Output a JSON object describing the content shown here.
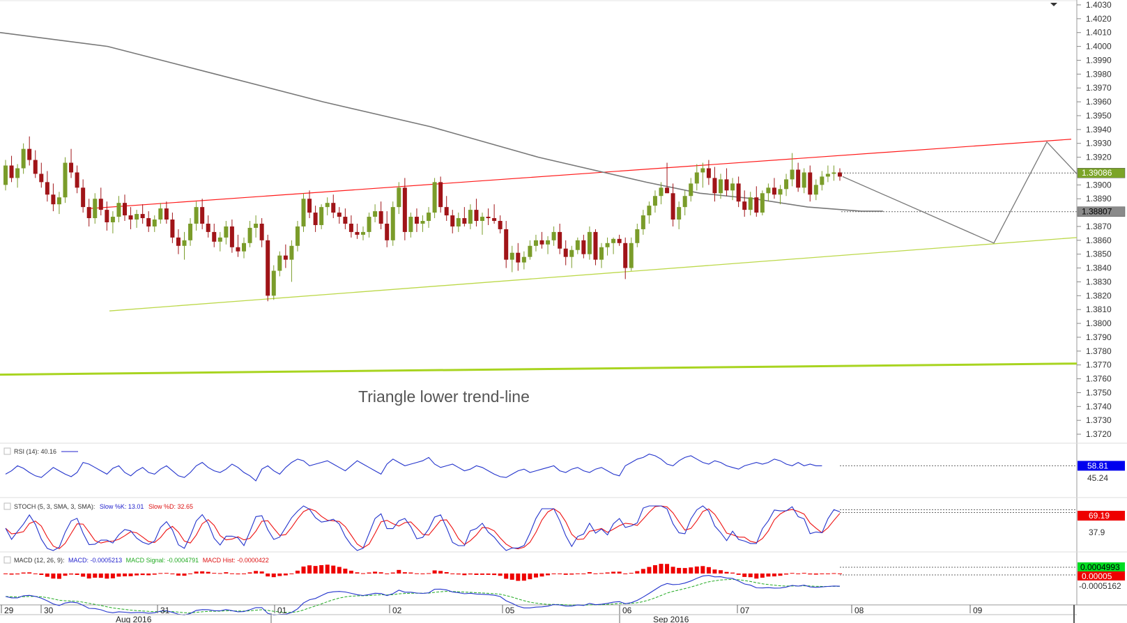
{
  "chart_data": {
    "type": "candlestick",
    "instrument_timeframe": "hourly",
    "y_axis": {
      "ylim": [
        1.3715,
        1.4032
      ],
      "ticks": [
        "1.4030",
        "1.4020",
        "1.4010",
        "1.4000",
        "1.3990",
        "1.3980",
        "1.3970",
        "1.3960",
        "1.3950",
        "1.3940",
        "1.3930",
        "1.3920",
        "1.3900",
        "1.3890",
        "1.3870",
        "1.3860",
        "1.3850",
        "1.3840",
        "1.3830",
        "1.3820",
        "1.3810",
        "1.3800",
        "1.3790",
        "1.3780",
        "1.3770",
        "1.3760",
        "1.3750",
        "1.3740",
        "1.3730",
        "1.3720"
      ]
    },
    "price_badges": [
      {
        "value": "1.39086",
        "color": "#7ba428",
        "text_color": "#ffffff"
      },
      {
        "value": "1.38807",
        "color": "#8a8a8a",
        "text_color": "#000000"
      }
    ],
    "annotation": "Triangle lower trend-line",
    "colors": {
      "bull": "#7a9c2a",
      "bear": "#a01418",
      "ma": "#777777",
      "upper_line": "#ff1a1a",
      "lower_line": "#bcd84a",
      "thick_line": "#a8d420"
    },
    "candles_ohlc": [
      [
        1.39,
        1.3918,
        1.3896,
        1.3914
      ],
      [
        1.3914,
        1.3921,
        1.3902,
        1.3905
      ],
      [
        1.3905,
        1.3915,
        1.3898,
        1.3912
      ],
      [
        1.3912,
        1.393,
        1.3908,
        1.3926
      ],
      [
        1.3926,
        1.3935,
        1.3914,
        1.3918
      ],
      [
        1.3918,
        1.3925,
        1.3905,
        1.3908
      ],
      [
        1.3908,
        1.3916,
        1.3898,
        1.3902
      ],
      [
        1.3902,
        1.391,
        1.3888,
        1.3893
      ],
      [
        1.3893,
        1.3901,
        1.3881,
        1.3886
      ],
      [
        1.3886,
        1.3895,
        1.3879,
        1.3891
      ],
      [
        1.3891,
        1.392,
        1.3887,
        1.3916
      ],
      [
        1.3916,
        1.3926,
        1.3905,
        1.3909
      ],
      [
        1.3909,
        1.3914,
        1.3894,
        1.3898
      ],
      [
        1.3898,
        1.3904,
        1.388,
        1.3884
      ],
      [
        1.3884,
        1.389,
        1.387,
        1.3876
      ],
      [
        1.3876,
        1.3894,
        1.3872,
        1.389
      ],
      [
        1.389,
        1.3898,
        1.3878,
        1.3882
      ],
      [
        1.3882,
        1.3888,
        1.3867,
        1.3873
      ],
      [
        1.3873,
        1.3881,
        1.3865,
        1.3877
      ],
      [
        1.3877,
        1.3892,
        1.3873,
        1.3887
      ],
      [
        1.3887,
        1.3893,
        1.3874,
        1.3878
      ],
      [
        1.3878,
        1.3884,
        1.3868,
        1.3875
      ],
      [
        1.3875,
        1.3882,
        1.3869,
        1.3879
      ],
      [
        1.3879,
        1.3886,
        1.3872,
        1.3876
      ],
      [
        1.3876,
        1.3881,
        1.3866,
        1.387
      ],
      [
        1.387,
        1.3878,
        1.3866,
        1.3875
      ],
      [
        1.3875,
        1.3887,
        1.3872,
        1.3883
      ],
      [
        1.3883,
        1.3888,
        1.3872,
        1.3875
      ],
      [
        1.3875,
        1.388,
        1.3858,
        1.3862
      ],
      [
        1.3862,
        1.3868,
        1.385,
        1.3856
      ],
      [
        1.3856,
        1.3866,
        1.3846,
        1.386
      ],
      [
        1.386,
        1.3876,
        1.3856,
        1.3872
      ],
      [
        1.3872,
        1.3888,
        1.3867,
        1.3884
      ],
      [
        1.3884,
        1.389,
        1.3868,
        1.3872
      ],
      [
        1.3872,
        1.3878,
        1.3862,
        1.3866
      ],
      [
        1.3866,
        1.3872,
        1.3855,
        1.3859
      ],
      [
        1.3859,
        1.3866,
        1.3852,
        1.3862
      ],
      [
        1.3862,
        1.3874,
        1.3857,
        1.387
      ],
      [
        1.387,
        1.3875,
        1.3851,
        1.3855
      ],
      [
        1.3855,
        1.3864,
        1.3848,
        1.3852
      ],
      [
        1.3852,
        1.3862,
        1.3847,
        1.3858
      ],
      [
        1.3858,
        1.3874,
        1.3855,
        1.3869
      ],
      [
        1.3869,
        1.3878,
        1.3862,
        1.3872
      ],
      [
        1.3872,
        1.3876,
        1.3855,
        1.386
      ],
      [
        1.386,
        1.3864,
        1.3816,
        1.382
      ],
      [
        1.382,
        1.3842,
        1.3817,
        1.3838
      ],
      [
        1.3838,
        1.3852,
        1.3834,
        1.3849
      ],
      [
        1.3849,
        1.3857,
        1.384,
        1.3846
      ],
      [
        1.3846,
        1.386,
        1.383,
        1.3856
      ],
      [
        1.3856,
        1.3874,
        1.3852,
        1.387
      ],
      [
        1.387,
        1.3894,
        1.3866,
        1.389
      ],
      [
        1.389,
        1.3896,
        1.3876,
        1.388
      ],
      [
        1.388,
        1.3885,
        1.3866,
        1.3871
      ],
      [
        1.3871,
        1.3886,
        1.3868,
        1.3884
      ],
      [
        1.3884,
        1.3891,
        1.3878,
        1.3887
      ],
      [
        1.3887,
        1.3893,
        1.3876,
        1.388
      ],
      [
        1.388,
        1.3884,
        1.3872,
        1.3877
      ],
      [
        1.3877,
        1.3883,
        1.3868,
        1.3872
      ],
      [
        1.3872,
        1.3878,
        1.3862,
        1.3866
      ],
      [
        1.3866,
        1.3872,
        1.3861,
        1.3864
      ],
      [
        1.3864,
        1.387,
        1.386,
        1.3866
      ],
      [
        1.3866,
        1.388,
        1.3862,
        1.3877
      ],
      [
        1.3877,
        1.3886,
        1.3873,
        1.3881
      ],
      [
        1.3881,
        1.3888,
        1.3868,
        1.3872
      ],
      [
        1.3872,
        1.3881,
        1.3855,
        1.386
      ],
      [
        1.386,
        1.3888,
        1.3856,
        1.3884
      ],
      [
        1.3884,
        1.3902,
        1.3879,
        1.3898
      ],
      [
        1.3898,
        1.3905,
        1.386,
        1.3866
      ],
      [
        1.3866,
        1.388,
        1.3862,
        1.3877
      ],
      [
        1.3877,
        1.3883,
        1.3866,
        1.3872
      ],
      [
        1.3872,
        1.3878,
        1.3866,
        1.3874
      ],
      [
        1.3874,
        1.3884,
        1.3869,
        1.388
      ],
      [
        1.388,
        1.3905,
        1.3876,
        1.3902
      ],
      [
        1.3902,
        1.3906,
        1.388,
        1.3884
      ],
      [
        1.3884,
        1.3892,
        1.3874,
        1.3878
      ],
      [
        1.3878,
        1.3882,
        1.3865,
        1.387
      ],
      [
        1.387,
        1.388,
        1.3866,
        1.3876
      ],
      [
        1.3876,
        1.3884,
        1.387,
        1.3872
      ],
      [
        1.3872,
        1.3886,
        1.3868,
        1.3882
      ],
      [
        1.3882,
        1.389,
        1.387,
        1.3874
      ],
      [
        1.3874,
        1.388,
        1.3864,
        1.3877
      ],
      [
        1.3877,
        1.3883,
        1.3871,
        1.3876
      ],
      [
        1.3876,
        1.3886,
        1.3872,
        1.3874
      ],
      [
        1.3874,
        1.3878,
        1.3865,
        1.3868
      ],
      [
        1.3868,
        1.3874,
        1.384,
        1.3846
      ],
      [
        1.3846,
        1.3856,
        1.3837,
        1.3851
      ],
      [
        1.3851,
        1.3858,
        1.3838,
        1.3844
      ],
      [
        1.3844,
        1.3852,
        1.3839,
        1.3848
      ],
      [
        1.3848,
        1.386,
        1.3846,
        1.3856
      ],
      [
        1.3856,
        1.3864,
        1.3852,
        1.386
      ],
      [
        1.386,
        1.3866,
        1.3854,
        1.3857
      ],
      [
        1.3857,
        1.3863,
        1.385,
        1.386
      ],
      [
        1.386,
        1.387,
        1.3856,
        1.3866
      ],
      [
        1.3866,
        1.3872,
        1.385,
        1.3854
      ],
      [
        1.3854,
        1.386,
        1.3842,
        1.3848
      ],
      [
        1.3848,
        1.3856,
        1.384,
        1.3853
      ],
      [
        1.3853,
        1.3862,
        1.385,
        1.386
      ],
      [
        1.386,
        1.3864,
        1.3847,
        1.385
      ],
      [
        1.385,
        1.387,
        1.3846,
        1.3866
      ],
      [
        1.3866,
        1.3868,
        1.3842,
        1.3846
      ],
      [
        1.3846,
        1.3858,
        1.384,
        1.3855
      ],
      [
        1.3855,
        1.3862,
        1.3849,
        1.3858
      ],
      [
        1.3858,
        1.3862,
        1.385,
        1.3861
      ],
      [
        1.3861,
        1.3864,
        1.3856,
        1.3858
      ],
      [
        1.3858,
        1.3862,
        1.3832,
        1.384
      ],
      [
        1.384,
        1.3862,
        1.3838,
        1.3858
      ],
      [
        1.3858,
        1.3872,
        1.3855,
        1.3868
      ],
      [
        1.3868,
        1.3882,
        1.3864,
        1.3878
      ],
      [
        1.3878,
        1.3888,
        1.3872,
        1.3885
      ],
      [
        1.3885,
        1.3896,
        1.388,
        1.3892
      ],
      [
        1.3892,
        1.3902,
        1.3886,
        1.3898
      ],
      [
        1.3898,
        1.3916,
        1.3894,
        1.3894
      ],
      [
        1.3894,
        1.3901,
        1.387,
        1.3875
      ],
      [
        1.3875,
        1.3888,
        1.3868,
        1.3884
      ],
      [
        1.3884,
        1.3896,
        1.3878,
        1.3892
      ],
      [
        1.3892,
        1.3905,
        1.3888,
        1.3901
      ],
      [
        1.3901,
        1.3915,
        1.3896,
        1.3909
      ],
      [
        1.3909,
        1.3916,
        1.3898,
        1.3912
      ],
      [
        1.3912,
        1.3918,
        1.39,
        1.3905
      ],
      [
        1.3905,
        1.3913,
        1.3888,
        1.3894
      ],
      [
        1.3894,
        1.3908,
        1.389,
        1.3904
      ],
      [
        1.3904,
        1.3912,
        1.3892,
        1.3896
      ],
      [
        1.3896,
        1.3905,
        1.3889,
        1.3901
      ],
      [
        1.3901,
        1.3906,
        1.3884,
        1.3888
      ],
      [
        1.3888,
        1.3896,
        1.3877,
        1.3882
      ],
      [
        1.3882,
        1.3895,
        1.3878,
        1.3891
      ],
      [
        1.3891,
        1.3899,
        1.3877,
        1.388
      ],
      [
        1.388,
        1.3896,
        1.3878,
        1.3894
      ],
      [
        1.3894,
        1.3901,
        1.3888,
        1.3898
      ],
      [
        1.3898,
        1.3905,
        1.389,
        1.3893
      ],
      [
        1.3893,
        1.39,
        1.3886,
        1.3897
      ],
      [
        1.3897,
        1.3908,
        1.3892,
        1.3904
      ],
      [
        1.3904,
        1.3923,
        1.3899,
        1.3911
      ],
      [
        1.3911,
        1.3916,
        1.3895,
        1.3898
      ],
      [
        1.3898,
        1.3912,
        1.3894,
        1.3909
      ],
      [
        1.3909,
        1.3914,
        1.3888,
        1.3893
      ],
      [
        1.3893,
        1.3904,
        1.3889,
        1.39
      ],
      [
        1.39,
        1.391,
        1.3896,
        1.3906
      ],
      [
        1.3906,
        1.3914,
        1.3902,
        1.3908
      ],
      [
        1.3908,
        1.3914,
        1.3903,
        1.3909
      ],
      [
        1.3909,
        1.3912,
        1.3903,
        1.3906
      ]
    ],
    "moving_average": {
      "x_frac": [
        0.0,
        0.1,
        0.2,
        0.3,
        0.4,
        0.5,
        0.6,
        0.65,
        0.7,
        0.75,
        0.8,
        0.82
      ],
      "y": [
        1.401,
        1.4,
        1.398,
        1.396,
        1.3942,
        1.392,
        1.3902,
        1.3894,
        1.389,
        1.3884,
        1.3881,
        1.3881
      ]
    },
    "upper_trend_line": {
      "from": 1.3883,
      "to": 1.3933
    },
    "lower_trend_line": {
      "from": 1.3809,
      "to": 1.3862
    },
    "thick_trend_line": {
      "from": 1.3763,
      "to": 1.3771
    },
    "projection": [
      1.3906,
      1.3858,
      1.3931,
      1.3908
    ],
    "indicators": {
      "rsi": {
        "label": "RSI (14): 40.16",
        "value_badge": "58.81",
        "ref_label": "45.24",
        "values": [
          48,
          52,
          58,
          55,
          50,
          46,
          44,
          50,
          56,
          52,
          48,
          45,
          50,
          62,
          60,
          56,
          52,
          48,
          55,
          58,
          50,
          46,
          52,
          56,
          50,
          48,
          54,
          58,
          52,
          46,
          44,
          50,
          58,
          62,
          56,
          52,
          50,
          54,
          60,
          56,
          50,
          46,
          40,
          54,
          58,
          52,
          48,
          56,
          62,
          66,
          64,
          58,
          60,
          62,
          64,
          60,
          56,
          52,
          58,
          64,
          60,
          56,
          52,
          48,
          60,
          66,
          62,
          58,
          60,
          62,
          64,
          68,
          60,
          56,
          58,
          60,
          56,
          52,
          54,
          58,
          56,
          52,
          48,
          45,
          44,
          48,
          52,
          54,
          50,
          52,
          54,
          56,
          58,
          52,
          50,
          54,
          56,
          52,
          50,
          54,
          56,
          52,
          48,
          46,
          58,
          62,
          66,
          68,
          72,
          70,
          66,
          60,
          58,
          64,
          68,
          70,
          66,
          62,
          60,
          64,
          62,
          58,
          56,
          54,
          58,
          60,
          62,
          60,
          62,
          66,
          64,
          60,
          58,
          62,
          58,
          60,
          58,
          58
        ]
      },
      "stoch": {
        "label": "STOCH (5, 3, SMA, 3, SMA):",
        "k_label": "Slow %K: 13.01",
        "d_label": "Slow %D: 32.65",
        "value_badge": "69.19",
        "ref_label": "37.9"
      },
      "macd": {
        "label": "MACD (12, 26, 9):",
        "macd_label": "MACD: -0.0005213",
        "signal_label": "MACD Signal: -0.0004791",
        "hist_label": "MACD Hist: -0.0000422",
        "badges": [
          "0.0004993",
          "0.00005"
        ],
        "ref_label": "-0.0005162"
      }
    },
    "x_axis": {
      "day_labels": [
        "29",
        "30",
        "31",
        "01",
        "02",
        "05",
        "06",
        "07",
        "08",
        "09"
      ],
      "month_labels": [
        "Aug 2016",
        "Sep 2016"
      ]
    }
  }
}
